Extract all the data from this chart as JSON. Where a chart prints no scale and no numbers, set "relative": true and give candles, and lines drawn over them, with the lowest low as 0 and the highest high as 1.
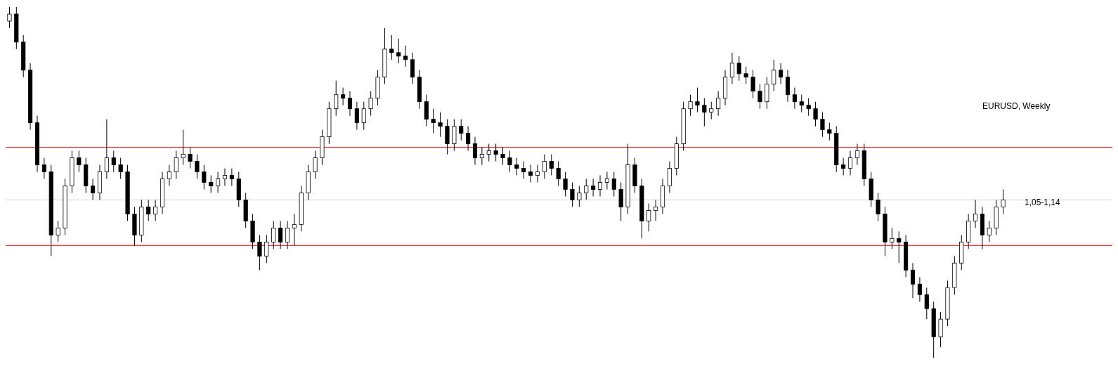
{
  "chart_data": {
    "type": "candlestick",
    "title": "EURUSD, Weekly",
    "relative": true,
    "categories": [
      null,
      null,
      null,
      null,
      null,
      null,
      null,
      null,
      null,
      null,
      null,
      null,
      null,
      null,
      null,
      null,
      null,
      null,
      null,
      null,
      null,
      null,
      null,
      null,
      null,
      null,
      null,
      null,
      null,
      null,
      null,
      null,
      null,
      null,
      null,
      null,
      null,
      null,
      null,
      null,
      null,
      null,
      null,
      null,
      null,
      null,
      null,
      null,
      null,
      null,
      null,
      null,
      null,
      null,
      null,
      null,
      null,
      null,
      null,
      null,
      null,
      null,
      null,
      null,
      null,
      null,
      null,
      null,
      null,
      null,
      null,
      null,
      null,
      null,
      null,
      null,
      null,
      null,
      null,
      null,
      null,
      null,
      null,
      null,
      null,
      null,
      null,
      null,
      null,
      null,
      null,
      null,
      null,
      null,
      null,
      null,
      null,
      null,
      null,
      null,
      null,
      null,
      null,
      null,
      null,
      null,
      null,
      null,
      null,
      null,
      null,
      null,
      null,
      null,
      null,
      null,
      null,
      null,
      null,
      null,
      null,
      null,
      null,
      null,
      null,
      null,
      null,
      null,
      null,
      null,
      null,
      null,
      null,
      null,
      null,
      null,
      null,
      null,
      null,
      null,
      null,
      null,
      null,
      null
    ],
    "ohlc": [
      [
        0.96,
        1,
        0.94,
        0.98
      ],
      [
        0.98,
        1,
        0.88,
        0.9
      ],
      [
        0.9,
        0.92,
        0.8,
        0.82
      ],
      [
        0.82,
        0.84,
        0.65,
        0.67
      ],
      [
        0.67,
        0.69,
        0.53,
        0.55
      ],
      [
        0.55,
        0.57,
        0.51,
        0.53
      ],
      [
        0.53,
        0.55,
        0.29,
        0.35
      ],
      [
        0.35,
        0.39,
        0.33,
        0.37
      ],
      [
        0.37,
        0.51,
        0.35,
        0.49
      ],
      [
        0.49,
        0.59,
        0.47,
        0.57
      ],
      [
        0.57,
        0.59,
        0.53,
        0.55
      ],
      [
        0.55,
        0.57,
        0.47,
        0.49
      ],
      [
        0.49,
        0.51,
        0.45,
        0.47
      ],
      [
        0.47,
        0.55,
        0.45,
        0.53
      ],
      [
        0.53,
        0.68,
        0.51,
        0.57
      ],
      [
        0.57,
        0.59,
        0.53,
        0.55
      ],
      [
        0.55,
        0.57,
        0.51,
        0.53
      ],
      [
        0.53,
        0.55,
        0.39,
        0.41
      ],
      [
        0.41,
        0.43,
        0.32,
        0.35
      ],
      [
        0.35,
        0.45,
        0.33,
        0.43
      ],
      [
        0.43,
        0.45,
        0.39,
        0.41
      ],
      [
        0.41,
        0.45,
        0.39,
        0.43
      ],
      [
        0.43,
        0.53,
        0.41,
        0.51
      ],
      [
        0.51,
        0.55,
        0.49,
        0.53
      ],
      [
        0.53,
        0.59,
        0.51,
        0.57
      ],
      [
        0.57,
        0.65,
        0.55,
        0.58
      ],
      [
        0.58,
        0.6,
        0.54,
        0.56
      ],
      [
        0.56,
        0.58,
        0.51,
        0.53
      ],
      [
        0.53,
        0.55,
        0.48,
        0.5
      ],
      [
        0.5,
        0.52,
        0.47,
        0.49
      ],
      [
        0.49,
        0.53,
        0.47,
        0.51
      ],
      [
        0.51,
        0.54,
        0.49,
        0.52
      ],
      [
        0.52,
        0.54,
        0.49,
        0.51
      ],
      [
        0.51,
        0.53,
        0.43,
        0.45
      ],
      [
        0.45,
        0.47,
        0.37,
        0.39
      ],
      [
        0.39,
        0.41,
        0.31,
        0.33
      ],
      [
        0.33,
        0.35,
        0.25,
        0.29
      ],
      [
        0.29,
        0.35,
        0.27,
        0.33
      ],
      [
        0.33,
        0.39,
        0.31,
        0.37
      ],
      [
        0.37,
        0.39,
        0.31,
        0.33
      ],
      [
        0.33,
        0.39,
        0.31,
        0.37
      ],
      [
        0.37,
        0.41,
        0.32,
        0.38
      ],
      [
        0.38,
        0.49,
        0.36,
        0.47
      ],
      [
        0.47,
        0.55,
        0.45,
        0.53
      ],
      [
        0.53,
        0.59,
        0.51,
        0.57
      ],
      [
        0.57,
        0.65,
        0.55,
        0.63
      ],
      [
        0.63,
        0.73,
        0.61,
        0.71
      ],
      [
        0.71,
        0.79,
        0.69,
        0.75
      ],
      [
        0.75,
        0.77,
        0.72,
        0.74
      ],
      [
        0.74,
        0.76,
        0.69,
        0.71
      ],
      [
        0.71,
        0.73,
        0.65,
        0.67
      ],
      [
        0.67,
        0.73,
        0.65,
        0.71
      ],
      [
        0.71,
        0.76,
        0.69,
        0.74
      ],
      [
        0.74,
        0.82,
        0.72,
        0.8
      ],
      [
        0.8,
        0.94,
        0.78,
        0.88
      ],
      [
        0.88,
        0.92,
        0.85,
        0.87
      ],
      [
        0.87,
        0.91,
        0.84,
        0.86
      ],
      [
        0.86,
        0.89,
        0.83,
        0.85
      ],
      [
        0.85,
        0.87,
        0.78,
        0.8
      ],
      [
        0.8,
        0.82,
        0.71,
        0.73
      ],
      [
        0.73,
        0.75,
        0.66,
        0.68
      ],
      [
        0.68,
        0.71,
        0.64,
        0.67
      ],
      [
        0.67,
        0.7,
        0.63,
        0.66
      ],
      [
        0.66,
        0.68,
        0.58,
        0.61
      ],
      [
        0.61,
        0.68,
        0.59,
        0.66
      ],
      [
        0.66,
        0.68,
        0.62,
        0.64
      ],
      [
        0.64,
        0.66,
        0.59,
        0.61
      ],
      [
        0.61,
        0.63,
        0.55,
        0.57
      ],
      [
        0.57,
        0.6,
        0.55,
        0.58
      ],
      [
        0.58,
        0.61,
        0.56,
        0.59
      ],
      [
        0.59,
        0.61,
        0.56,
        0.58
      ],
      [
        0.58,
        0.6,
        0.55,
        0.57
      ],
      [
        0.57,
        0.59,
        0.53,
        0.55
      ],
      [
        0.55,
        0.57,
        0.52,
        0.54
      ],
      [
        0.54,
        0.56,
        0.51,
        0.53
      ],
      [
        0.53,
        0.55,
        0.5,
        0.52
      ],
      [
        0.52,
        0.55,
        0.5,
        0.53
      ],
      [
        0.53,
        0.58,
        0.51,
        0.56
      ],
      [
        0.56,
        0.58,
        0.52,
        0.54
      ],
      [
        0.54,
        0.56,
        0.49,
        0.51
      ],
      [
        0.51,
        0.53,
        0.46,
        0.48
      ],
      [
        0.48,
        0.5,
        0.43,
        0.45
      ],
      [
        0.45,
        0.49,
        0.43,
        0.47
      ],
      [
        0.47,
        0.51,
        0.45,
        0.49
      ],
      [
        0.49,
        0.51,
        0.46,
        0.48
      ],
      [
        0.48,
        0.52,
        0.46,
        0.5
      ],
      [
        0.5,
        0.53,
        0.48,
        0.51
      ],
      [
        0.51,
        0.53,
        0.46,
        0.48
      ],
      [
        0.48,
        0.5,
        0.39,
        0.43
      ],
      [
        0.43,
        0.61,
        0.41,
        0.55
      ],
      [
        0.55,
        0.57,
        0.47,
        0.49
      ],
      [
        0.49,
        0.51,
        0.34,
        0.39
      ],
      [
        0.39,
        0.44,
        0.36,
        0.42
      ],
      [
        0.42,
        0.45,
        0.39,
        0.43
      ],
      [
        0.43,
        0.51,
        0.41,
        0.49
      ],
      [
        0.49,
        0.56,
        0.47,
        0.54
      ],
      [
        0.54,
        0.63,
        0.52,
        0.61
      ],
      [
        0.61,
        0.73,
        0.59,
        0.71
      ],
      [
        0.71,
        0.75,
        0.69,
        0.73
      ],
      [
        0.73,
        0.77,
        0.7,
        0.72
      ],
      [
        0.72,
        0.74,
        0.66,
        0.7
      ],
      [
        0.7,
        0.73,
        0.68,
        0.71
      ],
      [
        0.71,
        0.76,
        0.69,
        0.74
      ],
      [
        0.74,
        0.82,
        0.72,
        0.8
      ],
      [
        0.8,
        0.87,
        0.78,
        0.84
      ],
      [
        0.84,
        0.86,
        0.79,
        0.81
      ],
      [
        0.81,
        0.83,
        0.78,
        0.8
      ],
      [
        0.8,
        0.82,
        0.74,
        0.76
      ],
      [
        0.76,
        0.78,
        0.71,
        0.73
      ],
      [
        0.73,
        0.8,
        0.71,
        0.78
      ],
      [
        0.78,
        0.85,
        0.76,
        0.82
      ],
      [
        0.82,
        0.84,
        0.78,
        0.8
      ],
      [
        0.8,
        0.82,
        0.73,
        0.75
      ],
      [
        0.75,
        0.77,
        0.71,
        0.73
      ],
      [
        0.73,
        0.75,
        0.7,
        0.72
      ],
      [
        0.72,
        0.74,
        0.69,
        0.71
      ],
      [
        0.71,
        0.73,
        0.66,
        0.68
      ],
      [
        0.68,
        0.7,
        0.63,
        0.65
      ],
      [
        0.65,
        0.67,
        0.62,
        0.64
      ],
      [
        0.64,
        0.66,
        0.53,
        0.55
      ],
      [
        0.55,
        0.57,
        0.52,
        0.54
      ],
      [
        0.54,
        0.59,
        0.52,
        0.57
      ],
      [
        0.57,
        0.61,
        0.55,
        0.59
      ],
      [
        0.59,
        0.61,
        0.49,
        0.51
      ],
      [
        0.51,
        0.53,
        0.43,
        0.45
      ],
      [
        0.45,
        0.47,
        0.39,
        0.41
      ],
      [
        0.41,
        0.43,
        0.29,
        0.33
      ],
      [
        0.33,
        0.37,
        0.31,
        0.34
      ],
      [
        0.34,
        0.36,
        0.27,
        0.33
      ],
      [
        0.33,
        0.35,
        0.23,
        0.25
      ],
      [
        0.25,
        0.27,
        0.17,
        0.21
      ],
      [
        0.21,
        0.23,
        0.16,
        0.18
      ],
      [
        0.18,
        0.2,
        0.11,
        0.14
      ],
      [
        0.14,
        0.16,
        0,
        0.06
      ],
      [
        0.06,
        0.13,
        0.03,
        0.11
      ],
      [
        0.11,
        0.22,
        0.09,
        0.2
      ],
      [
        0.2,
        0.29,
        0.18,
        0.27
      ],
      [
        0.27,
        0.35,
        0.25,
        0.33
      ],
      [
        0.33,
        0.41,
        0.31,
        0.39
      ],
      [
        0.39,
        0.45,
        0.37,
        0.41
      ],
      [
        0.41,
        0.43,
        0.31,
        0.35
      ],
      [
        0.35,
        0.39,
        0.33,
        0.37
      ],
      [
        0.37,
        0.45,
        0.35,
        0.43
      ],
      [
        0.43,
        0.48,
        0.41,
        0.45
      ]
    ],
    "ref_lines": [
      {
        "axis": "y",
        "value": 0.6,
        "label": null,
        "color": "#ff0000"
      },
      {
        "axis": "y",
        "value": 0.45,
        "label": null,
        "color": "#d3d3d3"
      },
      {
        "axis": "y",
        "value": 0.32,
        "label": null,
        "color": "#ff0000"
      }
    ],
    "annotations": [
      "1,05-1,14"
    ]
  }
}
